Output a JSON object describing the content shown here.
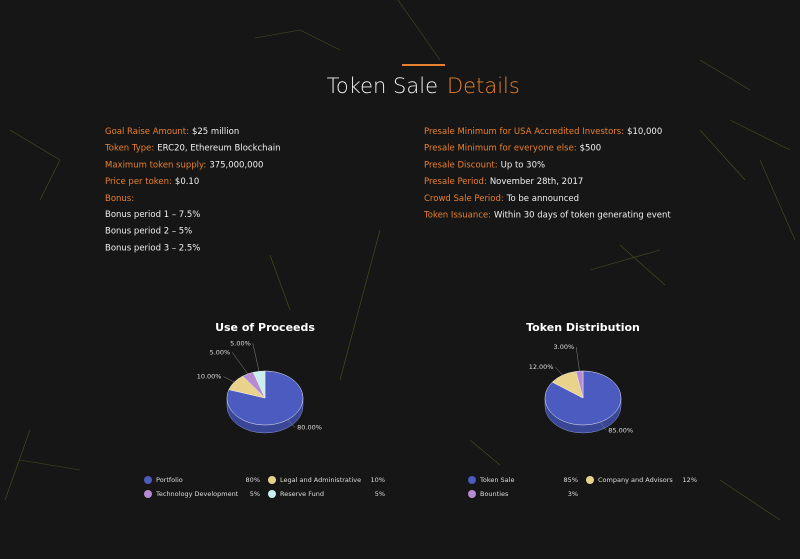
{
  "header": {
    "title": "Token Sale",
    "title_accent": "Details"
  },
  "details_left": [
    {
      "label": "Goal Raise Amount:",
      "value": "$25 million"
    },
    {
      "label": "Token Type:",
      "value": "ERC20, Ethereum Blockchain"
    },
    {
      "label": "Maximum token supply:",
      "value": "375,000,000"
    },
    {
      "label": "Price per token:",
      "value": "$0.10"
    },
    {
      "label": "Bonus:"
    }
  ],
  "bonus_periods": [
    "Bonus period 1 – 7.5%",
    "Bonus period 2 – 5%",
    "Bonus period 3 – 2.5%"
  ],
  "details_right": [
    {
      "label": "Presale Minimum for USA Accredited Investors:",
      "value": "$10,000"
    },
    {
      "label": "Presale Minimum for everyone else:",
      "value": "$500"
    },
    {
      "label": "Presale Discount:",
      "value": "Up to 30%"
    },
    {
      "label": "Presale Period:",
      "value": "November 28th, 2017"
    },
    {
      "label": "Crowd Sale Period:",
      "value": "To be announced"
    },
    {
      "label": "Token Issuance:",
      "value": "Within 30 days of token generating event"
    }
  ],
  "chart_data": [
    {
      "type": "pie",
      "title": "Use of Proceeds",
      "categories": [
        "Portfolio",
        "Legal and Administrative",
        "Technology Development",
        "Reserve Fund"
      ],
      "values": [
        80,
        10,
        5,
        5
      ],
      "value_labels": [
        "80.00%",
        "10.00%",
        "5.00%",
        "5.00%"
      ],
      "legend_value_labels": [
        "80%",
        "10%",
        "5%",
        "5%"
      ],
      "colors": [
        "#4b5bc0",
        "#e9d38c",
        "#b68bd4",
        "#c9eeee"
      ]
    },
    {
      "type": "pie",
      "title": "Token Distribution",
      "categories": [
        "Token Sale",
        "Company and Advisors",
        "Bounties"
      ],
      "values": [
        85,
        12,
        3
      ],
      "value_labels": [
        "85.00%",
        "12.00%",
        "3.00%"
      ],
      "legend_value_labels": [
        "85%",
        "12%",
        "3%"
      ],
      "colors": [
        "#4b5bc0",
        "#e9d38c",
        "#b68bd4"
      ]
    }
  ]
}
